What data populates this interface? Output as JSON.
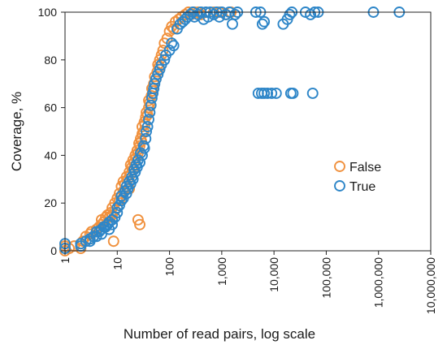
{
  "chart_data": {
    "type": "scatter",
    "title": "",
    "xlabel": "Number of read pairs, log scale",
    "ylabel": "Coverage, %",
    "x_scale": "log",
    "xlim": [
      1,
      10000000
    ],
    "ylim": [
      0,
      100
    ],
    "x_tick_labels": [
      "1",
      "10",
      "100",
      "1,000",
      "10,000",
      "100,000",
      "1,000,000",
      "10,000,000"
    ],
    "y_tick_labels": [
      "0",
      "20",
      "40",
      "60",
      "80",
      "100"
    ],
    "grid": false,
    "legend_position": "right-middle",
    "colors": {
      "False": "#f0913e",
      "True": "#2e86c8",
      "frame": "#222222"
    },
    "series": [
      {
        "name": "False",
        "color": "#f0913e",
        "marker": "open-circle",
        "points": [
          [
            1,
            0
          ],
          [
            1,
            1
          ],
          [
            1,
            2
          ],
          [
            1.2,
            1
          ],
          [
            1.5,
            2
          ],
          [
            2,
            1
          ],
          [
            2,
            3
          ],
          [
            2.2,
            4
          ],
          [
            2.5,
            4
          ],
          [
            2.5,
            6
          ],
          [
            3,
            5
          ],
          [
            3,
            7
          ],
          [
            3.2,
            8
          ],
          [
            3.5,
            6
          ],
          [
            4,
            9
          ],
          [
            4,
            8
          ],
          [
            4.5,
            10
          ],
          [
            5,
            11
          ],
          [
            5,
            13
          ],
          [
            5.5,
            12
          ],
          [
            6,
            14
          ],
          [
            6,
            10
          ],
          [
            6.5,
            15
          ],
          [
            7,
            14
          ],
          [
            7.5,
            16
          ],
          [
            8,
            15
          ],
          [
            8,
            18
          ],
          [
            8.5,
            4
          ],
          [
            9,
            17
          ],
          [
            9,
            20
          ],
          [
            10,
            18
          ],
          [
            10,
            22
          ],
          [
            11,
            21
          ],
          [
            11,
            24
          ],
          [
            12,
            23
          ],
          [
            12,
            27
          ],
          [
            13,
            25
          ],
          [
            13,
            29
          ],
          [
            14,
            28
          ],
          [
            15,
            27
          ],
          [
            15,
            31
          ],
          [
            16,
            30
          ],
          [
            17,
            33
          ],
          [
            17,
            26
          ],
          [
            18,
            32
          ],
          [
            18,
            36
          ],
          [
            19,
            35
          ],
          [
            20,
            34
          ],
          [
            20,
            38
          ],
          [
            21,
            37
          ],
          [
            22,
            40
          ],
          [
            23,
            39
          ],
          [
            24,
            42
          ],
          [
            25,
            41
          ],
          [
            25,
            13
          ],
          [
            27,
            11
          ],
          [
            26,
            45
          ],
          [
            27,
            44
          ],
          [
            28,
            47
          ],
          [
            29,
            46
          ],
          [
            30,
            49
          ],
          [
            30,
            52
          ],
          [
            32,
            50
          ],
          [
            33,
            54
          ],
          [
            34,
            53
          ],
          [
            35,
            56
          ],
          [
            36,
            58
          ],
          [
            38,
            57
          ],
          [
            40,
            60
          ],
          [
            40,
            63
          ],
          [
            42,
            62
          ],
          [
            45,
            65
          ],
          [
            46,
            68
          ],
          [
            48,
            67
          ],
          [
            50,
            70
          ],
          [
            52,
            73
          ],
          [
            55,
            72
          ],
          [
            58,
            75
          ],
          [
            60,
            78
          ],
          [
            63,
            77
          ],
          [
            65,
            80
          ],
          [
            70,
            82
          ],
          [
            75,
            84
          ],
          [
            80,
            87
          ],
          [
            90,
            89
          ],
          [
            100,
            92
          ],
          [
            110,
            94
          ],
          [
            120,
            93
          ],
          [
            130,
            96
          ],
          [
            150,
            97
          ],
          [
            170,
            98
          ],
          [
            200,
            99
          ],
          [
            230,
            100
          ],
          [
            260,
            99
          ],
          [
            300,
            100
          ],
          [
            350,
            100
          ],
          [
            400,
            99
          ],
          [
            500,
            100
          ],
          [
            700,
            100
          ],
          [
            900,
            100
          ],
          [
            1200,
            99
          ],
          [
            1500,
            100
          ]
        ]
      },
      {
        "name": "True",
        "color": "#2e86c8",
        "marker": "open-circle",
        "points": [
          [
            1,
            1
          ],
          [
            1,
            3
          ],
          [
            2,
            2
          ],
          [
            2,
            3
          ],
          [
            2.5,
            4
          ],
          [
            3,
            4
          ],
          [
            3,
            5
          ],
          [
            3.5,
            6
          ],
          [
            4,
            6
          ],
          [
            4,
            8
          ],
          [
            4.5,
            8
          ],
          [
            5,
            9
          ],
          [
            5,
            7
          ],
          [
            5.5,
            10
          ],
          [
            6,
            10
          ],
          [
            6.5,
            11
          ],
          [
            7,
            12
          ],
          [
            7,
            9
          ],
          [
            8,
            13
          ],
          [
            8,
            11
          ],
          [
            9,
            14
          ],
          [
            10,
            16
          ],
          [
            10,
            18
          ],
          [
            11,
            19
          ],
          [
            12,
            21
          ],
          [
            12,
            23
          ],
          [
            13,
            22
          ],
          [
            14,
            25
          ],
          [
            15,
            24
          ],
          [
            15,
            27
          ],
          [
            16,
            26
          ],
          [
            17,
            29
          ],
          [
            18,
            28
          ],
          [
            19,
            31
          ],
          [
            20,
            30
          ],
          [
            21,
            34
          ],
          [
            22,
            33
          ],
          [
            23,
            36
          ],
          [
            24,
            35
          ],
          [
            25,
            38
          ],
          [
            27,
            37
          ],
          [
            28,
            41
          ],
          [
            30,
            40
          ],
          [
            32,
            44
          ],
          [
            33,
            43
          ],
          [
            35,
            47
          ],
          [
            36,
            50
          ],
          [
            38,
            52
          ],
          [
            40,
            55
          ],
          [
            42,
            58
          ],
          [
            44,
            61
          ],
          [
            46,
            64
          ],
          [
            48,
            66
          ],
          [
            50,
            68
          ],
          [
            52,
            70
          ],
          [
            55,
            72
          ],
          [
            60,
            74
          ],
          [
            65,
            76
          ],
          [
            70,
            78
          ],
          [
            80,
            80
          ],
          [
            85,
            82
          ],
          [
            100,
            84
          ],
          [
            110,
            87
          ],
          [
            120,
            86
          ],
          [
            140,
            93
          ],
          [
            160,
            95
          ],
          [
            180,
            96
          ],
          [
            200,
            97
          ],
          [
            220,
            98
          ],
          [
            250,
            99
          ],
          [
            280,
            100
          ],
          [
            300,
            98
          ],
          [
            350,
            99
          ],
          [
            400,
            100
          ],
          [
            450,
            97
          ],
          [
            500,
            100
          ],
          [
            550,
            98
          ],
          [
            600,
            100
          ],
          [
            700,
            99
          ],
          [
            800,
            100
          ],
          [
            900,
            98
          ],
          [
            1000,
            100
          ],
          [
            1200,
            99
          ],
          [
            1400,
            100
          ],
          [
            1600,
            95
          ],
          [
            1800,
            99
          ],
          [
            2000,
            100
          ],
          [
            4500,
            100
          ],
          [
            5500,
            100
          ],
          [
            6000,
            95
          ],
          [
            6500,
            96
          ],
          [
            15000,
            95
          ],
          [
            18000,
            97
          ],
          [
            20000,
            99
          ],
          [
            22000,
            100
          ],
          [
            40000,
            100
          ],
          [
            50000,
            99
          ],
          [
            60000,
            100
          ],
          [
            70000,
            100
          ],
          [
            800000,
            100
          ],
          [
            2500000,
            100
          ],
          [
            5000,
            66
          ],
          [
            5800,
            66
          ],
          [
            6500,
            66
          ],
          [
            7500,
            66
          ],
          [
            9000,
            66
          ],
          [
            11000,
            66
          ],
          [
            21000,
            66
          ],
          [
            23000,
            66
          ],
          [
            55000,
            66
          ]
        ]
      }
    ]
  }
}
